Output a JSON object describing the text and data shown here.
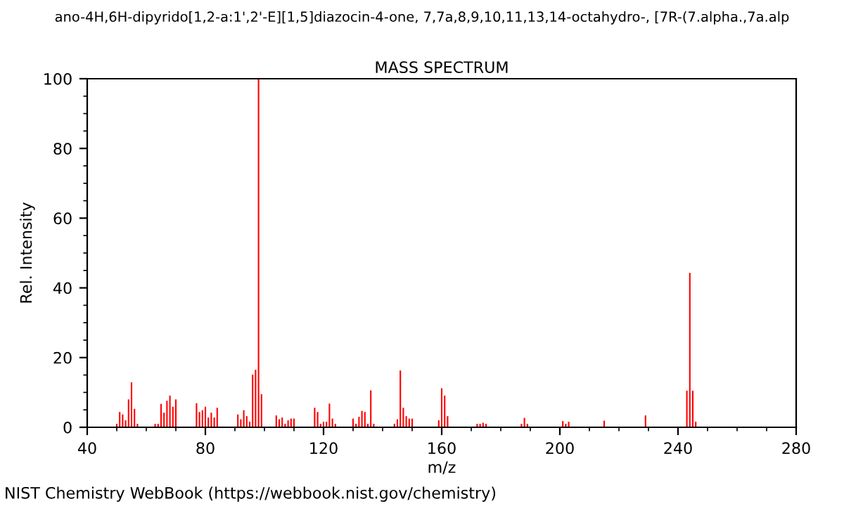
{
  "chart_data": {
    "type": "bar",
    "title": "ano-4H,6H-dipyrido[1,2-a:1',2'-E][1,5]diazocin-4-one, 7,7a,8,9,10,11,13,14-octahydro-, [7R-(7.alpha.,7a.alp",
    "subtitle": "MASS SPECTRUM",
    "xlabel": "m/z",
    "ylabel": "Rel. Intensity",
    "annotations": [
      "NIST Chemistry WebBook (https://webbook.nist.gov/chemistry)"
    ],
    "x": [
      50,
      51,
      52,
      53,
      54,
      55,
      56,
      57,
      63,
      64,
      65,
      66,
      67,
      68,
      69,
      70,
      77,
      78,
      79,
      80,
      81,
      82,
      83,
      84,
      91,
      92,
      93,
      94,
      95,
      96,
      97,
      98,
      99,
      104,
      105,
      106,
      107,
      108,
      109,
      110,
      117,
      118,
      119,
      120,
      121,
      122,
      123,
      124,
      130,
      131,
      132,
      133,
      134,
      135,
      136,
      137,
      144,
      145,
      146,
      147,
      148,
      149,
      150,
      159,
      160,
      161,
      162,
      172,
      173,
      174,
      175,
      187,
      188,
      189,
      201,
      202,
      203,
      215,
      229,
      243,
      244,
      245,
      246
    ],
    "values": [
      1,
      4.4,
      3.7,
      2,
      8,
      12.9,
      5.3,
      1,
      1,
      1,
      6.7,
      4.2,
      7.6,
      9.1,
      5.9,
      8,
      6.9,
      4.4,
      4.9,
      5.9,
      2.8,
      4.2,
      2.8,
      5.6,
      3.7,
      2.3,
      4.9,
      3.2,
      1.6,
      15.1,
      16.5,
      100,
      9.5,
      3.4,
      2.3,
      2.8,
      1,
      2,
      2.5,
      2.5,
      5.6,
      4.4,
      1,
      1.6,
      1.6,
      6.8,
      2.5,
      1,
      2.5,
      1,
      3,
      4.7,
      4.4,
      1,
      10.6,
      1,
      1,
      2.3,
      16.3,
      5.6,
      3.2,
      2.5,
      2.5,
      2,
      11.2,
      9.1,
      3.2,
      1,
      1,
      1.3,
      1,
      1,
      2.7,
      1,
      1.8,
      1,
      1.6,
      1.9,
      3.4,
      10.5,
      44.3,
      10.5,
      1.6
    ],
    "color": "#ff0000",
    "xlim": [
      40,
      280
    ],
    "ylim": [
      0,
      100
    ],
    "xticks": [
      40,
      {
        "value": 50,
        "label": null
      },
      {
        "value": 60,
        "label": null
      },
      {
        "value": 70,
        "label": null
      },
      80,
      {
        "value": 90,
        "label": null
      },
      {
        "value": 100,
        "label": null
      },
      {
        "value": 110,
        "label": null
      },
      120,
      {
        "value": 130,
        "label": null
      },
      {
        "value": 140,
        "label": null
      },
      {
        "value": 150,
        "label": null
      },
      160,
      {
        "value": 170,
        "label": null
      },
      {
        "value": 180,
        "label": null
      },
      {
        "value": 190,
        "label": null
      },
      200,
      {
        "value": 210,
        "label": null
      },
      {
        "value": 220,
        "label": null
      },
      {
        "value": 230,
        "label": null
      },
      240,
      {
        "value": 250,
        "label": null
      },
      {
        "value": 260,
        "label": null
      },
      {
        "value": 270,
        "label": null
      },
      280
    ],
    "yticks": [
      0,
      {
        "value": 5,
        "label": null
      },
      {
        "value": 10,
        "label": null
      },
      {
        "value": 15,
        "label": null
      },
      20,
      {
        "value": 25,
        "label": null
      },
      {
        "value": 30,
        "label": null
      },
      {
        "value": 35,
        "label": null
      },
      40,
      {
        "value": 45,
        "label": null
      },
      {
        "value": 50,
        "label": null
      },
      {
        "value": 55,
        "label": null
      },
      60,
      {
        "value": 65,
        "label": null
      },
      {
        "value": 70,
        "label": null
      },
      {
        "value": 75,
        "label": null
      },
      80,
      {
        "value": 85,
        "label": null
      },
      {
        "value": 90,
        "label": null
      },
      {
        "value": 95,
        "label": null
      },
      100
    ],
    "grid": false,
    "legend": false
  }
}
